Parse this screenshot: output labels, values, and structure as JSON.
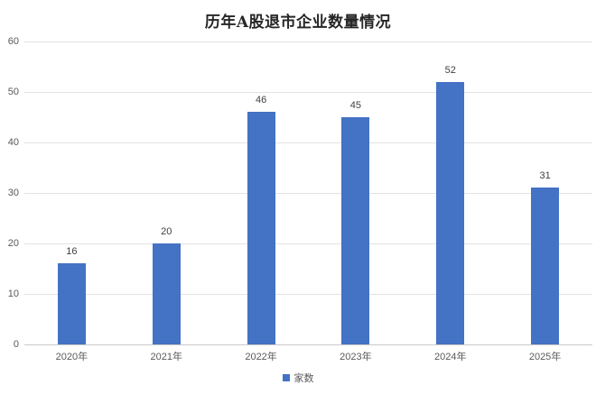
{
  "chart_data": {
    "type": "bar",
    "title": "历年A股退市企业数量情况",
    "categories": [
      "2020年",
      "2021年",
      "2022年",
      "2023年",
      "2024年",
      "2025年"
    ],
    "series": [
      {
        "name": "家数",
        "values": [
          16,
          20,
          46,
          45,
          52,
          31
        ]
      }
    ],
    "legend": "家数",
    "legend_position": "bottom",
    "yticks": [
      0,
      10,
      20,
      30,
      40,
      50,
      60
    ],
    "ylim": [
      0,
      60
    ],
    "grid": true,
    "xlabel": "",
    "ylabel": "",
    "colors": {
      "bar": "#4472C4",
      "gridline": "#E2E2E2",
      "axis_line": "#C9C9C9",
      "tick_label": "#595959",
      "data_label": "#404040",
      "title": "#262626",
      "background": "#FFFFFF"
    }
  }
}
